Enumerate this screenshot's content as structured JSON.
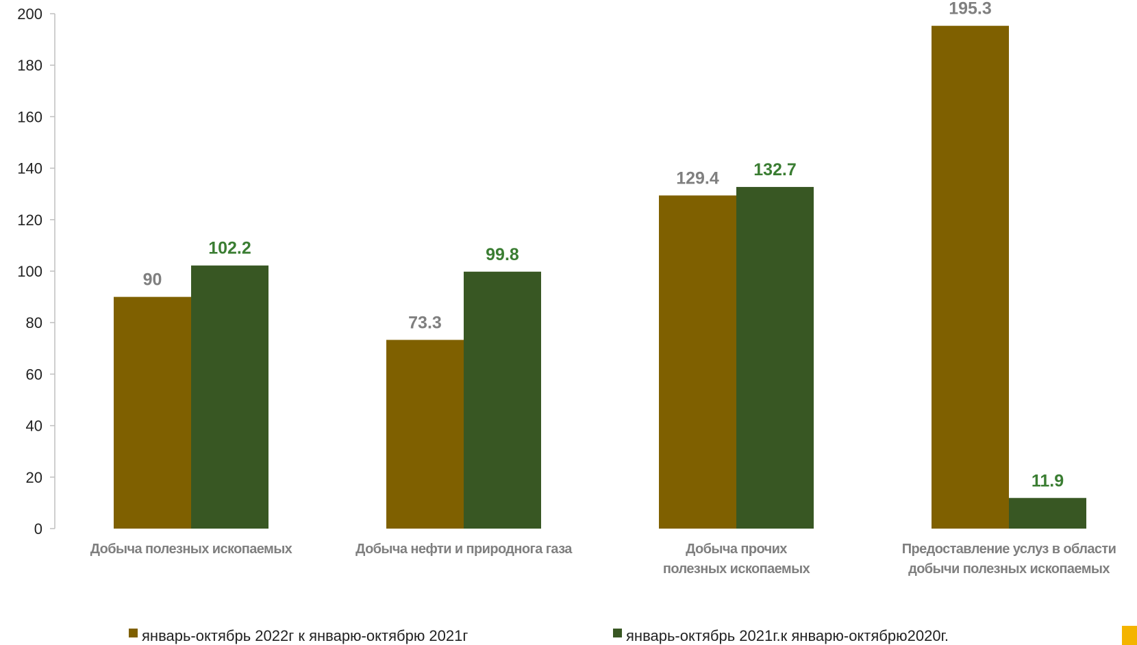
{
  "chart_data": {
    "type": "bar",
    "categories": [
      [
        "Добыча полезных ископаемых"
      ],
      [
        "Добыча нефти и природнога газа"
      ],
      [
        "Добыча прочих",
        "полезных ископаемых"
      ],
      [
        "Предоставление услуз в области",
        "добычи полезных ископаемых"
      ]
    ],
    "series": [
      {
        "name": "январь-октябрь 2022г к январю-октябрю 2021г",
        "values": [
          90,
          73.3,
          129.4,
          195.3
        ],
        "labels": [
          "90",
          "73.3",
          "129.4",
          "195.3"
        ],
        "color": "#7f6000",
        "label_color": "#7f7f7f"
      },
      {
        "name": "январь-октябрь 2021г.к январю-октябрю2020г.",
        "values": [
          102.2,
          99.8,
          132.7,
          11.9
        ],
        "labels": [
          "102.2",
          "99.8",
          "132.7",
          "11.9"
        ],
        "color": "#385723",
        "label_color": "#3a7d32"
      }
    ],
    "yticks": [
      "0",
      "20",
      "40",
      "60",
      "80",
      "100",
      "120",
      "140",
      "160",
      "180",
      "200"
    ],
    "ylim": [
      0,
      200
    ],
    "legend_position": "bottom",
    "grid": false,
    "title": "",
    "xlabel": "",
    "ylabel": ""
  },
  "colors": {
    "axis": "#bfbfbf",
    "corner_mark": "#f4b400"
  }
}
